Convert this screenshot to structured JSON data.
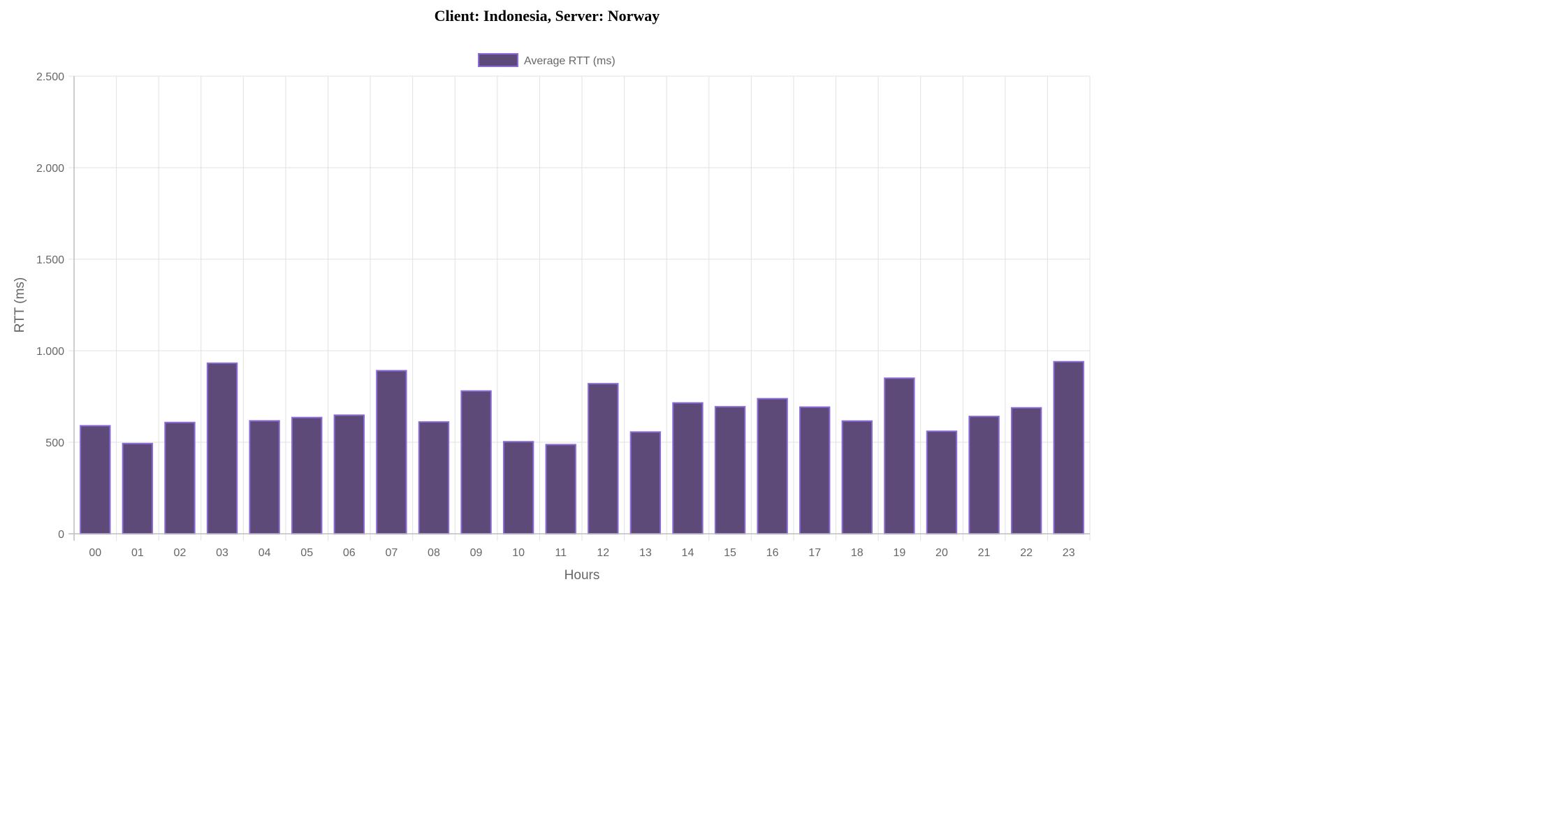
{
  "title": "Client: Indonesia, Server: Norway",
  "chart_data": {
    "type": "bar",
    "title": "Client: Indonesia, Server: Norway",
    "xlabel": "Hours",
    "ylabel": "RTT (ms)",
    "ylim": [
      0,
      2500
    ],
    "y_ticks": [
      0,
      500,
      1000,
      1500,
      2000,
      2500
    ],
    "y_tick_labels": [
      "0",
      "500",
      "1.000",
      "1.500",
      "2.000",
      "2.500"
    ],
    "grid": true,
    "legend_position": "top-center",
    "categories": [
      "00",
      "01",
      "02",
      "03",
      "04",
      "05",
      "06",
      "07",
      "08",
      "09",
      "10",
      "11",
      "12",
      "13",
      "14",
      "15",
      "16",
      "17",
      "18",
      "19",
      "20",
      "21",
      "22",
      "23"
    ],
    "series": [
      {
        "name": "Average RTT (ms)",
        "color": "#5e4a78",
        "border_color": "#8a6cd6",
        "values": [
          590,
          493,
          608,
          932,
          617,
          635,
          648,
          891,
          611,
          780,
          503,
          487,
          820,
          556,
          715,
          694,
          738,
          692,
          616,
          850,
          560,
          641,
          688,
          940
        ]
      }
    ]
  }
}
